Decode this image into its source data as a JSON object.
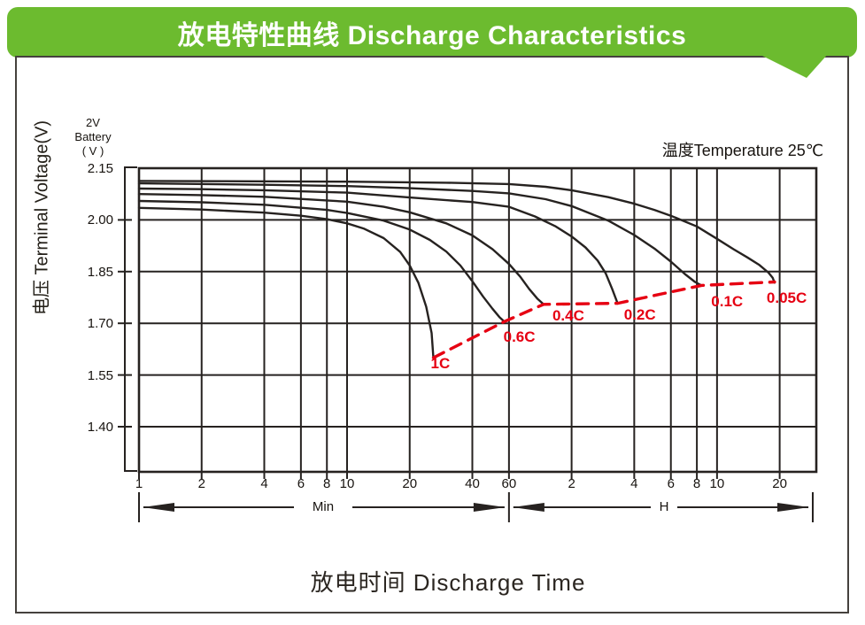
{
  "banner": {
    "title": "放电特性曲线  Discharge Characteristics",
    "bg_color": "#6cbb2f",
    "text_color": "#ffffff"
  },
  "panel": {
    "border_color": "#45413d",
    "bg_color": "#ffffff"
  },
  "chart_data": {
    "type": "line",
    "title": "放电特性曲线 Discharge Characteristics",
    "xlabel": "放电时间  Discharge Time",
    "ylabel": "电压 Terminal Voltage(V)",
    "unit_label": [
      "2V",
      "Battery",
      "( V )"
    ],
    "annotation": "温度Temperature 25℃",
    "x_scale": "log",
    "grid": true,
    "xlim_minutes": [
      1,
      1800
    ],
    "ylim": [
      1.27,
      2.15
    ],
    "line_color": "#262220",
    "cutoff_color": "#e60012",
    "y_ticks": [
      {
        "label": "2.15",
        "value": 2.15
      },
      {
        "label": "2.00",
        "value": 2.0
      },
      {
        "label": "1.85",
        "value": 1.85
      },
      {
        "label": "1.70",
        "value": 1.7
      },
      {
        "label": "1.55",
        "value": 1.55
      },
      {
        "label": "1.40",
        "value": 1.4
      }
    ],
    "x_ticks": [
      {
        "label": "1",
        "minutes": 1
      },
      {
        "label": "2",
        "minutes": 2
      },
      {
        "label": "4",
        "minutes": 4
      },
      {
        "label": "6",
        "minutes": 6
      },
      {
        "label": "8",
        "minutes": 8
      },
      {
        "label": "10",
        "minutes": 10
      },
      {
        "label": "20",
        "minutes": 20
      },
      {
        "label": "40",
        "minutes": 40
      },
      {
        "label": "60",
        "minutes": 60
      },
      {
        "label": "2",
        "minutes": 120
      },
      {
        "label": "4",
        "minutes": 240
      },
      {
        "label": "6",
        "minutes": 360
      },
      {
        "label": "8",
        "minutes": 480
      },
      {
        "label": "10",
        "minutes": 600
      },
      {
        "label": "20",
        "minutes": 1200
      }
    ],
    "x_sections": [
      {
        "label": "Min",
        "from_minutes": 1,
        "to_minutes": 60
      },
      {
        "label": "H",
        "from_minutes": 60,
        "to_minutes": 1766
      }
    ],
    "series": [
      {
        "name": "1C",
        "label_offset": [
          -3,
          -3
        ],
        "points": [
          [
            1,
            2.035
          ],
          [
            2,
            2.03
          ],
          [
            4,
            2.021
          ],
          [
            6,
            2.012
          ],
          [
            8,
            2.002
          ],
          [
            10,
            1.99
          ],
          [
            12,
            1.975
          ],
          [
            15,
            1.947
          ],
          [
            18,
            1.907
          ],
          [
            20,
            1.868
          ],
          [
            22,
            1.818
          ],
          [
            24,
            1.748
          ],
          [
            25.5,
            1.672
          ],
          [
            26,
            1.6
          ]
        ]
      },
      {
        "name": "0.6C",
        "label_offset": [
          -1,
          8
        ],
        "points": [
          [
            1,
            2.055
          ],
          [
            2,
            2.051
          ],
          [
            4,
            2.044
          ],
          [
            8,
            2.029
          ],
          [
            10,
            2.02
          ],
          [
            15,
            1.998
          ],
          [
            20,
            1.972
          ],
          [
            25,
            1.942
          ],
          [
            30,
            1.908
          ],
          [
            35,
            1.868
          ],
          [
            40,
            1.822
          ],
          [
            45,
            1.778
          ],
          [
            50,
            1.742
          ],
          [
            54,
            1.718
          ],
          [
            57,
            1.705
          ]
        ]
      },
      {
        "name": "0.4C",
        "label_offset": [
          10,
          3
        ],
        "points": [
          [
            1,
            2.075
          ],
          [
            2,
            2.072
          ],
          [
            4,
            2.067
          ],
          [
            10,
            2.053
          ],
          [
            15,
            2.038
          ],
          [
            20,
            2.022
          ],
          [
            30,
            1.99
          ],
          [
            40,
            1.955
          ],
          [
            50,
            1.915
          ],
          [
            60,
            1.872
          ],
          [
            68,
            1.835
          ],
          [
            75,
            1.8
          ],
          [
            82,
            1.772
          ],
          [
            88,
            1.755
          ]
        ]
      },
      {
        "name": "0.2C",
        "label_offset": [
          7,
          3
        ],
        "points": [
          [
            1,
            2.091
          ],
          [
            2,
            2.089
          ],
          [
            4,
            2.086
          ],
          [
            10,
            2.079
          ],
          [
            20,
            2.065
          ],
          [
            40,
            2.052
          ],
          [
            60,
            2.038
          ],
          [
            80,
            2.01
          ],
          [
            100,
            1.982
          ],
          [
            120,
            1.952
          ],
          [
            140,
            1.92
          ],
          [
            160,
            1.882
          ],
          [
            175,
            1.845
          ],
          [
            188,
            1.8
          ],
          [
            200,
            1.757
          ]
        ]
      },
      {
        "name": "0.1C",
        "label_offset": [
          11,
          9
        ],
        "points": [
          [
            1,
            2.106
          ],
          [
            4,
            2.102
          ],
          [
            10,
            2.098
          ],
          [
            20,
            2.092
          ],
          [
            40,
            2.084
          ],
          [
            60,
            2.077
          ],
          [
            90,
            2.06
          ],
          [
            120,
            2.04
          ],
          [
            180,
            1.998
          ],
          [
            240,
            1.956
          ],
          [
            300,
            1.917
          ],
          [
            360,
            1.879
          ],
          [
            420,
            1.843
          ],
          [
            470,
            1.82
          ],
          [
            505,
            1.81
          ]
        ]
      },
      {
        "name": "0.05C",
        "label_offset": [
          -9,
          8
        ],
        "points": [
          [
            1,
            2.113
          ],
          [
            10,
            2.111
          ],
          [
            30,
            2.108
          ],
          [
            60,
            2.104
          ],
          [
            90,
            2.096
          ],
          [
            120,
            2.086
          ],
          [
            180,
            2.066
          ],
          [
            240,
            2.047
          ],
          [
            300,
            2.029
          ],
          [
            360,
            2.012
          ],
          [
            480,
            1.981
          ],
          [
            600,
            1.945
          ],
          [
            720,
            1.915
          ],
          [
            840,
            1.891
          ],
          [
            960,
            1.869
          ],
          [
            1060,
            1.847
          ],
          [
            1110,
            1.832
          ],
          [
            1135,
            1.818
          ]
        ]
      }
    ],
    "cutoff_curve": {
      "description": "discharge end-point locus (dashed)",
      "color": "#e60012",
      "points": [
        [
          26,
          1.6
        ],
        [
          57,
          1.705
        ],
        [
          88,
          1.755
        ],
        [
          200,
          1.758
        ],
        [
          505,
          1.81
        ],
        [
          1135,
          1.82
        ]
      ]
    }
  }
}
